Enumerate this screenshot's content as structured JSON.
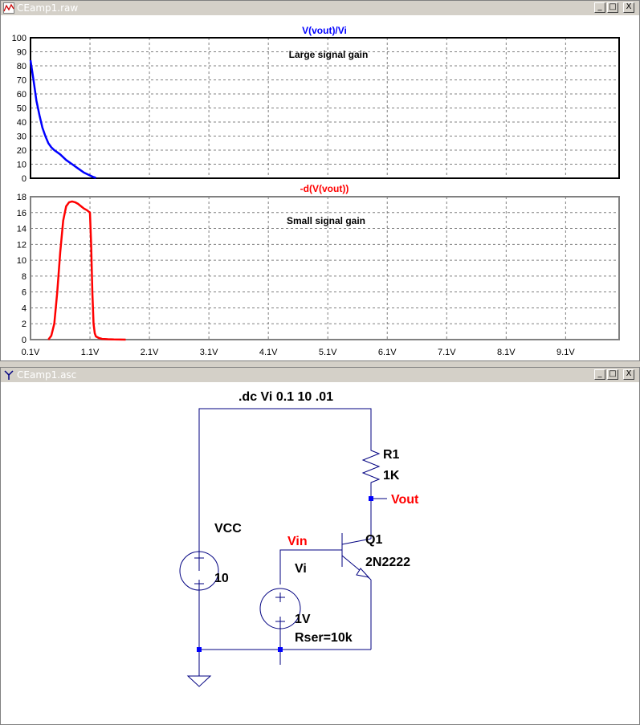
{
  "plot_window": {
    "title": "CEamp1.raw",
    "controls": {
      "minimize": "_",
      "maximize": "□",
      "close": "X"
    }
  },
  "schematic_window": {
    "title": "CEamp1.asc",
    "controls": {
      "minimize": "_",
      "maximize": "□",
      "close": "X"
    }
  },
  "chart_data": [
    {
      "type": "line",
      "title": "V(vout)/Vi",
      "annotation": "Large signal gain",
      "x_ticks": [
        "0.1V",
        "1.1V",
        "2.1V",
        "3.1V",
        "4.1V",
        "5.1V",
        "6.1V",
        "7.1V",
        "8.1V",
        "9.1V"
      ],
      "xlim": [
        0.1,
        10
      ],
      "ylim": [
        0,
        100
      ],
      "y_ticks": [
        "0",
        "10",
        "20",
        "30",
        "40",
        "50",
        "60",
        "70",
        "80",
        "90",
        "100"
      ],
      "grid": true,
      "color": "#0000ff",
      "series": [
        {
          "x": [
            0.1,
            0.15,
            0.2,
            0.25,
            0.3,
            0.35,
            0.4,
            0.45,
            0.5,
            0.6,
            0.7,
            0.8,
            0.9,
            1.0,
            1.1,
            1.15,
            1.2
          ],
          "y": [
            84,
            70,
            55,
            45,
            36,
            30,
            25,
            22,
            20,
            17,
            13,
            10,
            7,
            4,
            2,
            1,
            0.3
          ]
        }
      ]
    },
    {
      "type": "line",
      "title": "-d(V(vout))",
      "annotation": "Small signal gain",
      "x_ticks": [
        "0.1V",
        "1.1V",
        "2.1V",
        "3.1V",
        "4.1V",
        "5.1V",
        "6.1V",
        "7.1V",
        "8.1V",
        "9.1V"
      ],
      "xlim": [
        0.1,
        10
      ],
      "ylim": [
        0,
        18
      ],
      "y_ticks": [
        "0",
        "2",
        "4",
        "6",
        "8",
        "10",
        "12",
        "14",
        "16",
        "18"
      ],
      "grid": true,
      "color": "#ff0000",
      "series": [
        {
          "x": [
            0.4,
            0.45,
            0.5,
            0.55,
            0.6,
            0.65,
            0.7,
            0.75,
            0.8,
            0.85,
            0.9,
            0.95,
            1.0,
            1.05,
            1.1,
            1.12,
            1.14,
            1.16,
            1.18,
            1.2,
            1.25,
            1.3,
            1.4,
            1.5,
            1.6,
            1.7
          ],
          "y": [
            0,
            0.5,
            2,
            6,
            11,
            15,
            16.8,
            17.3,
            17.4,
            17.3,
            17.1,
            16.8,
            16.5,
            16.3,
            16,
            12,
            6,
            2,
            0.8,
            0.4,
            0.2,
            0.1,
            0.05,
            0.02,
            0.01,
            0
          ]
        }
      ]
    }
  ],
  "schematic": {
    "directive": ".dc Vi 0.1 10 .01",
    "r1": {
      "name": "R1",
      "value": "1K"
    },
    "vout_label": "Vout",
    "vin_label": "Vin",
    "q1": {
      "name": "Q1",
      "model": "2N2222"
    },
    "vcc": {
      "name": "VCC",
      "value": "10"
    },
    "vi": {
      "name": "Vi",
      "value": "1V",
      "rser": "Rser=10k"
    }
  }
}
